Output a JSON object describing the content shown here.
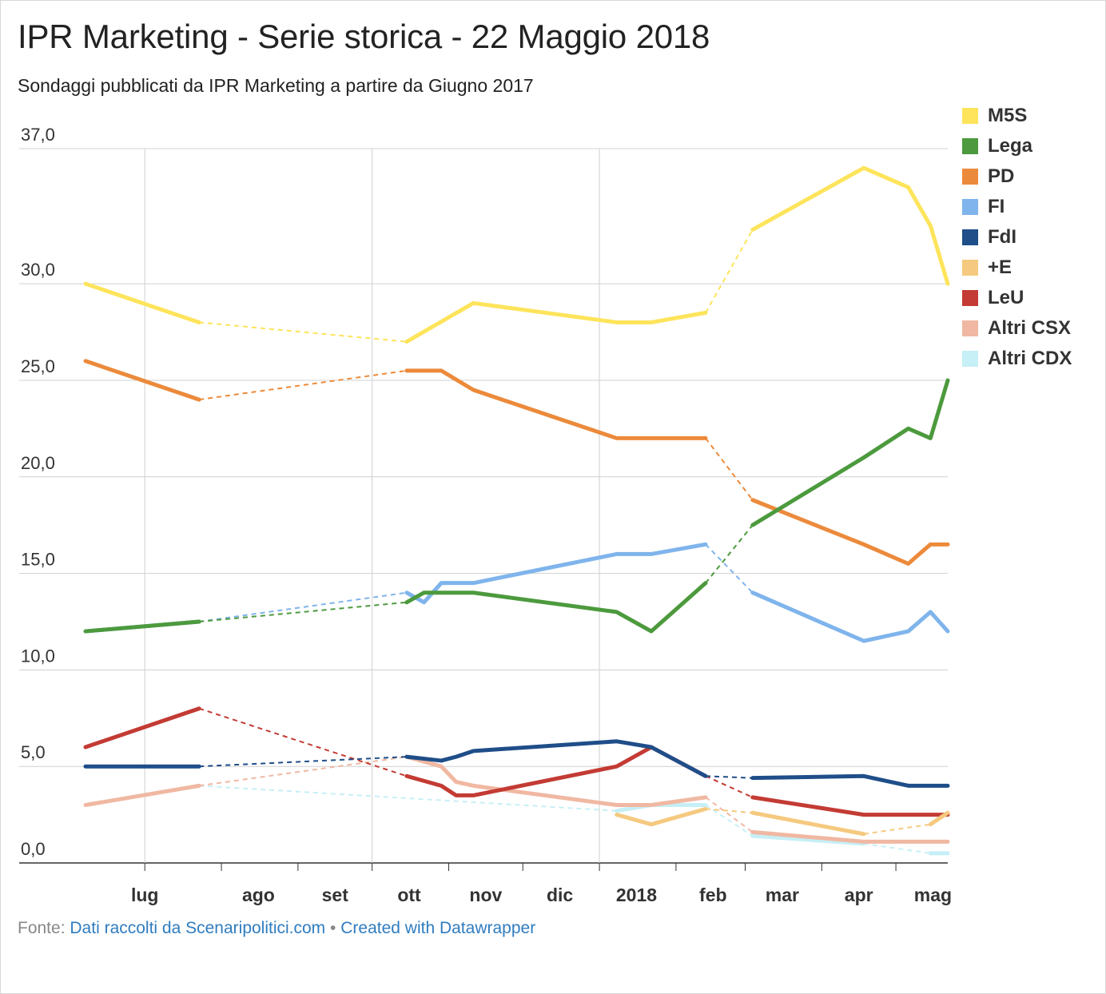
{
  "title": "IPR Marketing - Serie storica - 22 Maggio 2018",
  "subtitle": "Sondaggi pubblicati da IPR Marketing a partire da Giugno 2017",
  "footer": {
    "prefix": "Fonte:",
    "source": "Dati raccolti da Scenaripolitici.com",
    "separator": "•",
    "credit": "Created with Datawrapper"
  },
  "chart_data": {
    "type": "line",
    "title": "IPR Marketing - Serie storica - 22 Maggio 2018",
    "subtitle": "Sondaggi pubblicati da IPR Marketing a partire da Giugno 2017",
    "ylim": [
      0,
      37
    ],
    "y_ticks": [
      0,
      5,
      10,
      15,
      20,
      25,
      30,
      37
    ],
    "y_tick_labels": [
      "0,0",
      "5,0",
      "10,0",
      "15,0",
      "20,0",
      "25,0",
      "30,0",
      "37,0"
    ],
    "x_range": [
      "2017-06-07",
      "2018-05-22"
    ],
    "x_ticks": [
      "2017-07-01",
      "2017-08-01",
      "2017-09-01",
      "2017-10-01",
      "2017-11-01",
      "2017-12-01",
      "2018-01-01",
      "2018-02-01",
      "2018-03-01",
      "2018-04-01",
      "2018-05-01"
    ],
    "x_tick_labels": [
      "lug",
      "ago",
      "set",
      "ott",
      "nov",
      "dic",
      "2018",
      "feb",
      "mar",
      "apr",
      "mag"
    ],
    "gridlines": true,
    "legend_position": "right",
    "series": [
      {
        "name": "M5S",
        "color": "#fde45b",
        "points": [
          {
            "x": "2017-06-07",
            "y": 30.0
          },
          {
            "x": "2017-07-23",
            "y": 28.0,
            "gap_after": true
          },
          {
            "x": "2017-10-15",
            "y": 27.0
          },
          {
            "x": "2017-11-11",
            "y": 29.0
          },
          {
            "x": "2018-01-08",
            "y": 28.0
          },
          {
            "x": "2018-01-22",
            "y": 28.0
          },
          {
            "x": "2018-02-13",
            "y": 28.5,
            "gap_after": true
          },
          {
            "x": "2018-03-04",
            "y": 32.8
          },
          {
            "x": "2018-04-18",
            "y": 36.0
          },
          {
            "x": "2018-05-06",
            "y": 35.0
          },
          {
            "x": "2018-05-15",
            "y": 33.0
          },
          {
            "x": "2018-05-22",
            "y": 30.0
          }
        ]
      },
      {
        "name": "Lega",
        "color": "#4c9a3d",
        "points": [
          {
            "x": "2017-06-07",
            "y": 12.0
          },
          {
            "x": "2017-07-23",
            "y": 12.5,
            "gap_after": true
          },
          {
            "x": "2017-10-15",
            "y": 13.5
          },
          {
            "x": "2017-10-22",
            "y": 14.0
          },
          {
            "x": "2017-11-11",
            "y": 14.0
          },
          {
            "x": "2018-01-08",
            "y": 13.0
          },
          {
            "x": "2018-01-22",
            "y": 12.0
          },
          {
            "x": "2018-02-13",
            "y": 14.5,
            "gap_after": true
          },
          {
            "x": "2018-03-04",
            "y": 17.5
          },
          {
            "x": "2018-04-18",
            "y": 21.0
          },
          {
            "x": "2018-05-06",
            "y": 22.5
          },
          {
            "x": "2018-05-15",
            "y": 22.0
          },
          {
            "x": "2018-05-22",
            "y": 25.0
          }
        ]
      },
      {
        "name": "PD",
        "color": "#ec8a3b",
        "points": [
          {
            "x": "2017-06-07",
            "y": 26.0
          },
          {
            "x": "2017-07-23",
            "y": 24.0,
            "gap_after": true
          },
          {
            "x": "2017-10-15",
            "y": 25.5
          },
          {
            "x": "2017-10-29",
            "y": 25.5
          },
          {
            "x": "2017-11-11",
            "y": 24.5
          },
          {
            "x": "2018-01-08",
            "y": 22.0
          },
          {
            "x": "2018-01-22",
            "y": 22.0
          },
          {
            "x": "2018-02-13",
            "y": 22.0,
            "gap_after": true
          },
          {
            "x": "2018-03-04",
            "y": 18.8
          },
          {
            "x": "2018-04-18",
            "y": 16.5
          },
          {
            "x": "2018-05-06",
            "y": 15.5
          },
          {
            "x": "2018-05-15",
            "y": 16.5
          },
          {
            "x": "2018-05-22",
            "y": 16.5
          }
        ]
      },
      {
        "name": "FI",
        "color": "#7fb4ec",
        "points": [
          {
            "x": "2017-06-07",
            "y": 12.0
          },
          {
            "x": "2017-07-23",
            "y": 12.5,
            "gap_after": true
          },
          {
            "x": "2017-10-15",
            "y": 14.0
          },
          {
            "x": "2017-10-22",
            "y": 13.5
          },
          {
            "x": "2017-10-29",
            "y": 14.5
          },
          {
            "x": "2017-11-11",
            "y": 14.5
          },
          {
            "x": "2018-01-08",
            "y": 16.0
          },
          {
            "x": "2018-01-22",
            "y": 16.0
          },
          {
            "x": "2018-02-13",
            "y": 16.5,
            "gap_after": true
          },
          {
            "x": "2018-03-04",
            "y": 14.0
          },
          {
            "x": "2018-04-18",
            "y": 11.5
          },
          {
            "x": "2018-05-06",
            "y": 12.0
          },
          {
            "x": "2018-05-15",
            "y": 13.0
          },
          {
            "x": "2018-05-22",
            "y": 12.0
          }
        ]
      },
      {
        "name": "FdI",
        "color": "#1f4e89",
        "points": [
          {
            "x": "2017-06-07",
            "y": 5.0
          },
          {
            "x": "2017-07-23",
            "y": 5.0,
            "gap_after": true
          },
          {
            "x": "2017-10-15",
            "y": 5.5
          },
          {
            "x": "2017-10-29",
            "y": 5.3
          },
          {
            "x": "2017-11-04",
            "y": 5.5
          },
          {
            "x": "2017-11-11",
            "y": 5.8
          },
          {
            "x": "2018-01-08",
            "y": 6.3
          },
          {
            "x": "2018-01-22",
            "y": 6.0
          },
          {
            "x": "2018-02-13",
            "y": 4.5,
            "gap_after": true
          },
          {
            "x": "2018-03-04",
            "y": 4.4
          },
          {
            "x": "2018-04-18",
            "y": 4.5
          },
          {
            "x": "2018-05-06",
            "y": 4.0
          },
          {
            "x": "2018-05-15",
            "y": 4.0
          },
          {
            "x": "2018-05-22",
            "y": 4.0
          }
        ]
      },
      {
        "name": "+E",
        "color": "#f5c97f",
        "points": [
          {
            "x": "2018-01-08",
            "y": 2.5
          },
          {
            "x": "2018-01-22",
            "y": 2.0
          },
          {
            "x": "2018-02-13",
            "y": 2.8,
            "gap_after": true
          },
          {
            "x": "2018-03-04",
            "y": 2.6
          },
          {
            "x": "2018-04-18",
            "y": 1.5,
            "gap_after": true
          },
          {
            "x": "2018-05-15",
            "y": 2.0
          },
          {
            "x": "2018-05-22",
            "y": 2.6
          }
        ]
      },
      {
        "name": "LeU",
        "color": "#c33b34",
        "points": [
          {
            "x": "2017-06-07",
            "y": 6.0
          },
          {
            "x": "2017-07-23",
            "y": 8.0,
            "gap_after": true
          },
          {
            "x": "2017-10-15",
            "y": 4.5
          },
          {
            "x": "2017-10-29",
            "y": 4.0
          },
          {
            "x": "2017-11-04",
            "y": 3.5
          },
          {
            "x": "2017-11-11",
            "y": 3.5
          },
          {
            "x": "2018-01-08",
            "y": 5.0
          },
          {
            "x": "2018-01-22",
            "y": 6.0
          },
          {
            "x": "2018-02-13",
            "y": 4.5,
            "gap_after": true
          },
          {
            "x": "2018-03-04",
            "y": 3.4
          },
          {
            "x": "2018-04-18",
            "y": 2.5
          },
          {
            "x": "2018-05-06",
            "y": 2.5
          },
          {
            "x": "2018-05-15",
            "y": 2.5
          },
          {
            "x": "2018-05-22",
            "y": 2.5
          }
        ]
      },
      {
        "name": "Altri CSX",
        "color": "#f0b8a2",
        "points": [
          {
            "x": "2017-06-07",
            "y": 3.0
          },
          {
            "x": "2017-07-23",
            "y": 4.0,
            "gap_after": true
          },
          {
            "x": "2017-10-15",
            "y": 5.5
          },
          {
            "x": "2017-10-29",
            "y": 5.0
          },
          {
            "x": "2017-11-04",
            "y": 4.2
          },
          {
            "x": "2017-11-11",
            "y": 4.0
          },
          {
            "x": "2018-01-08",
            "y": 3.0
          },
          {
            "x": "2018-01-22",
            "y": 3.0
          },
          {
            "x": "2018-02-13",
            "y": 3.4,
            "gap_after": true
          },
          {
            "x": "2018-03-04",
            "y": 1.6
          },
          {
            "x": "2018-04-18",
            "y": 1.1
          },
          {
            "x": "2018-05-06",
            "y": 1.1
          },
          {
            "x": "2018-05-15",
            "y": 1.1
          },
          {
            "x": "2018-05-22",
            "y": 1.1
          }
        ]
      },
      {
        "name": "Altri CDX",
        "color": "#c6eff6",
        "points": [
          {
            "x": "2017-07-23",
            "y": 4.0,
            "gap_after": true
          },
          {
            "x": "2018-01-08",
            "y": 2.7
          },
          {
            "x": "2018-01-22",
            "y": 3.0
          },
          {
            "x": "2018-02-13",
            "y": 3.0,
            "gap_after": true
          },
          {
            "x": "2018-03-04",
            "y": 1.4
          },
          {
            "x": "2018-04-18",
            "y": 1.0,
            "gap_after": true
          },
          {
            "x": "2018-05-15",
            "y": 0.5
          },
          {
            "x": "2018-05-22",
            "y": 0.5
          }
        ]
      }
    ]
  }
}
